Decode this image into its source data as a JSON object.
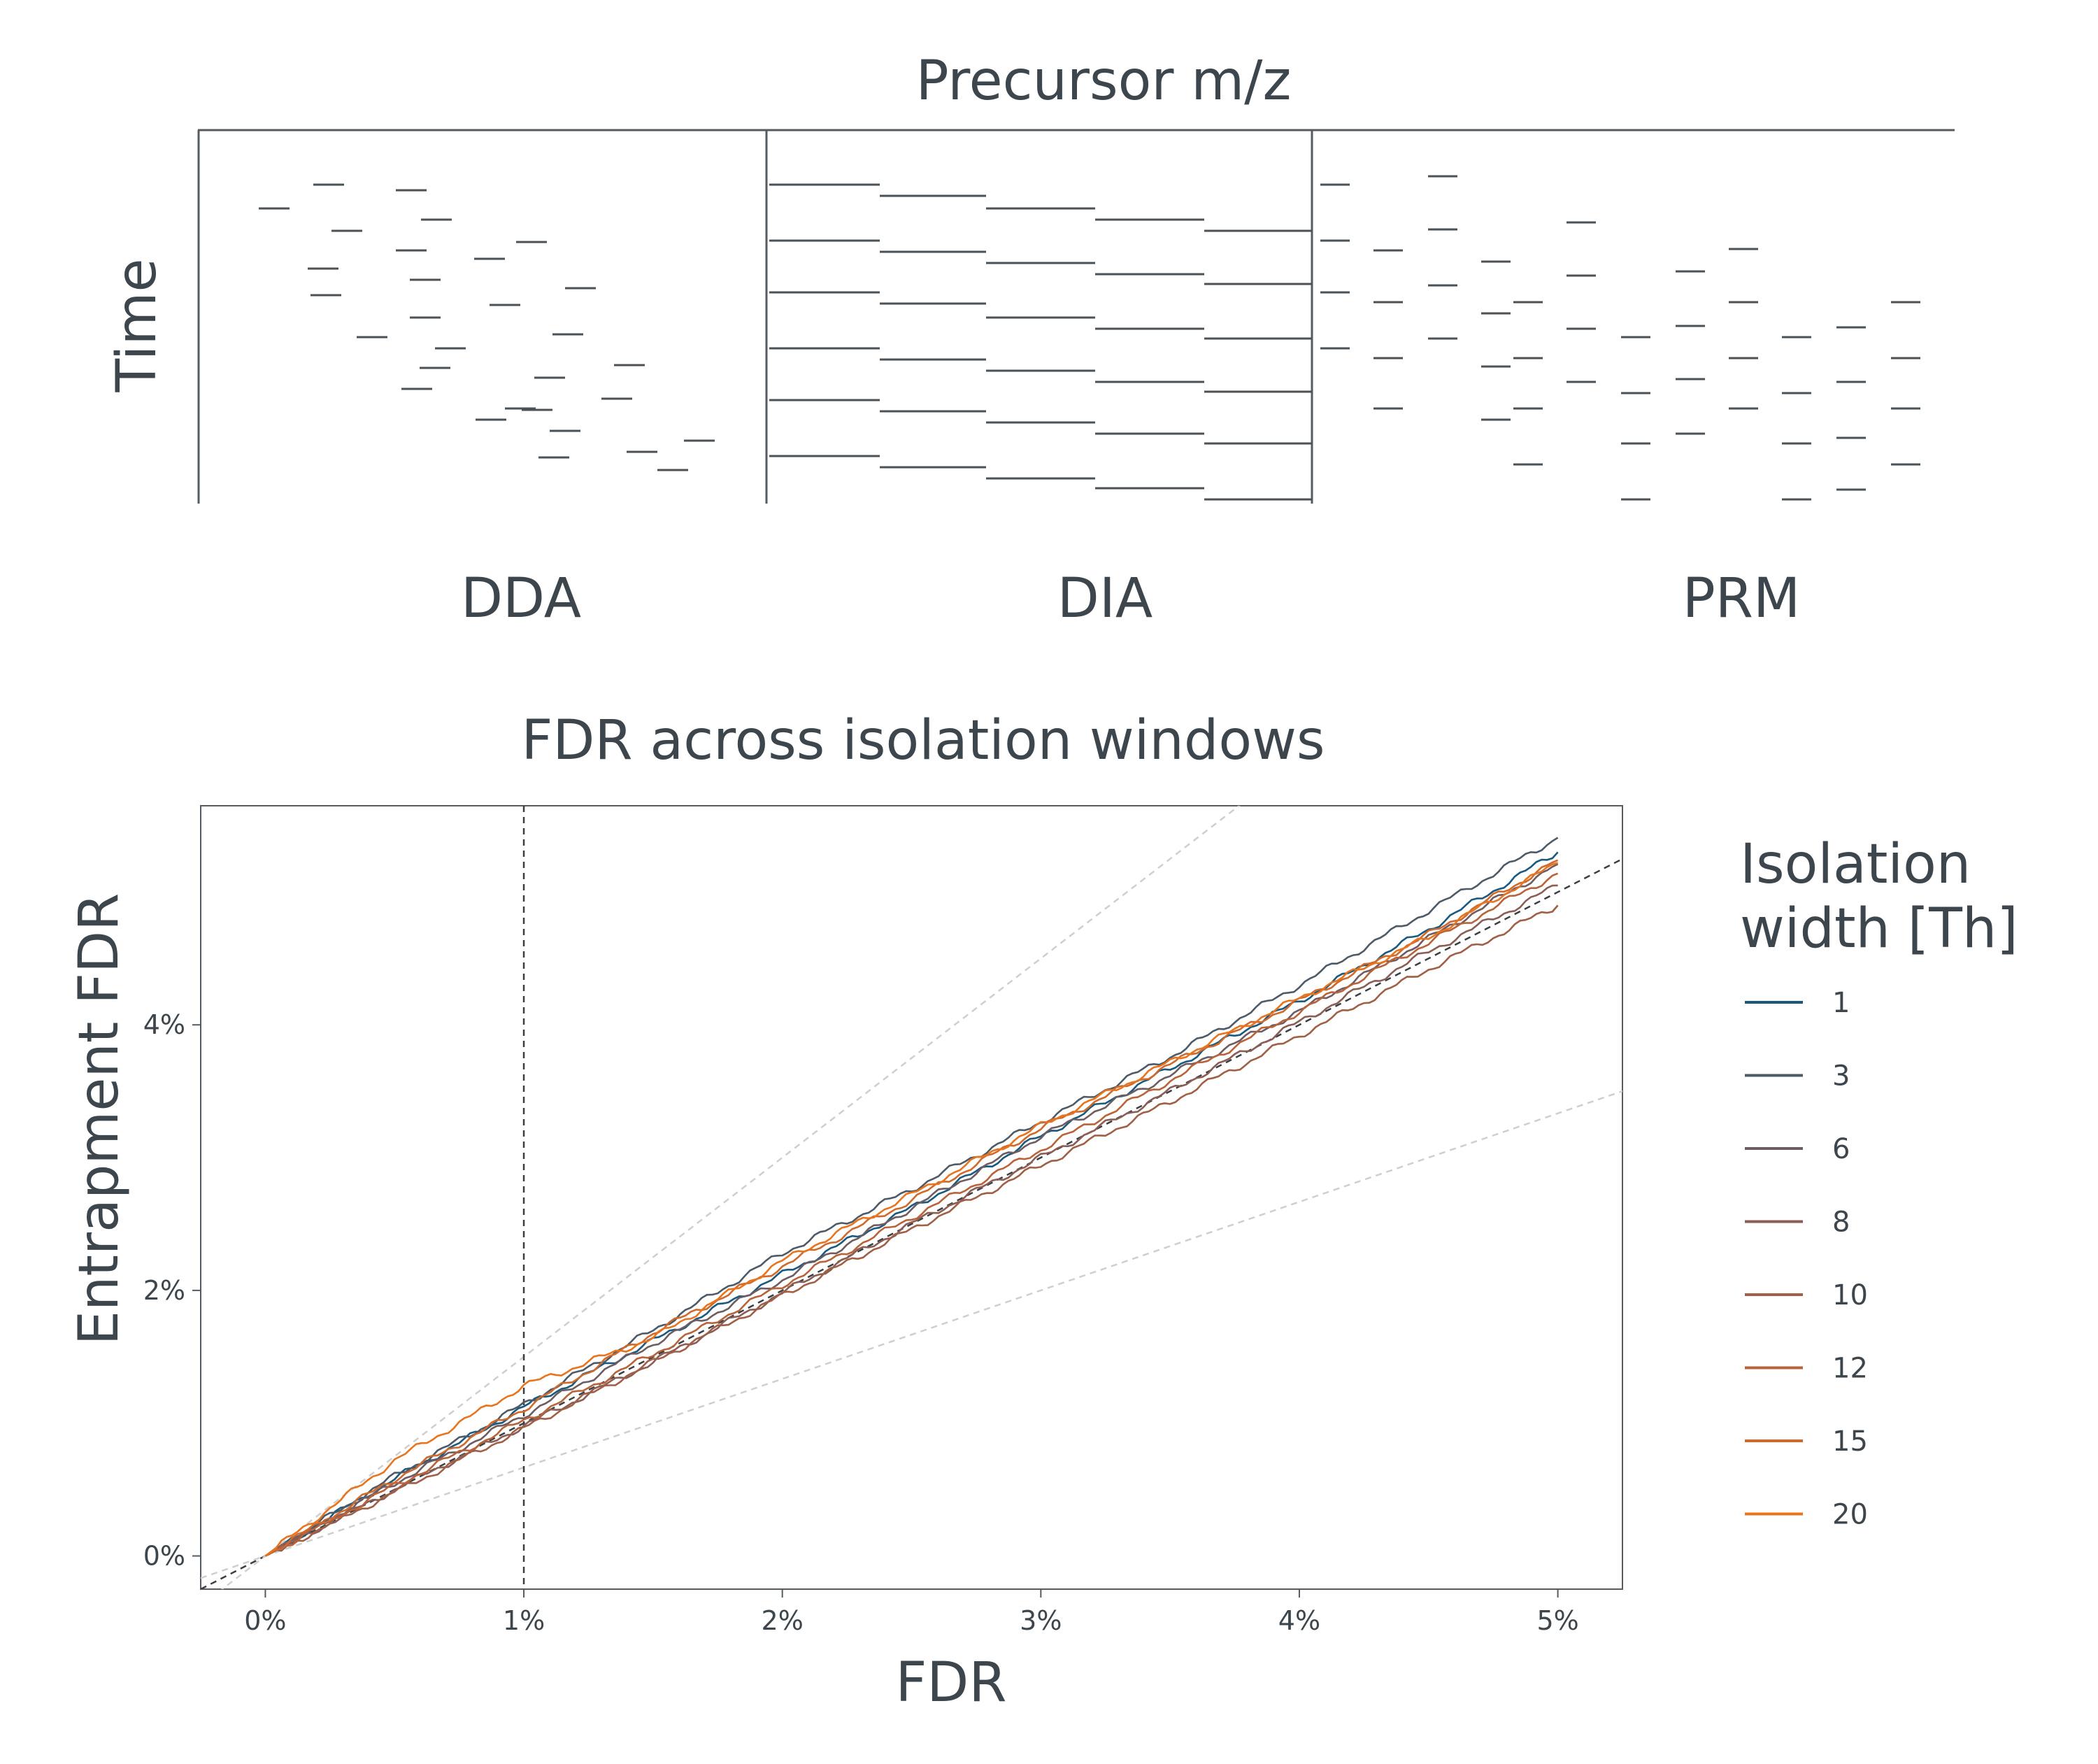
{
  "scheme": {
    "title": "Precursor m/z",
    "ylabel": "Time",
    "panels": [
      "DDA",
      "DIA",
      "PRM"
    ]
  },
  "chart_data": {
    "type": "line",
    "title": "FDR across isolation windows",
    "xlabel": "FDR",
    "ylabel": "Entrapment FDR",
    "xlim": [
      -0.0025,
      0.0525
    ],
    "ylim": [
      -0.0025,
      0.0565
    ],
    "x_ticks": [
      0,
      0.01,
      0.02,
      0.03,
      0.04,
      0.05
    ],
    "x_tick_labels": [
      "0%",
      "1%",
      "2%",
      "3%",
      "4%",
      "5%"
    ],
    "y_ticks": [
      0,
      0.02,
      0.04
    ],
    "y_tick_labels": [
      "0%",
      "2%",
      "4%"
    ],
    "vline_x": 0.01,
    "reference_lines": [
      {
        "slope": 1,
        "style": "dark-dashed"
      },
      {
        "slope": 1.5,
        "style": "light-dashed"
      },
      {
        "slope": 0.6667,
        "style": "light-dashed"
      }
    ],
    "legend_title": "Isolation width [Th]",
    "legend_position": "right",
    "series": [
      {
        "name": "1",
        "color": "#1b5a7e",
        "x": [
          0,
          0.005,
          0.01,
          0.015,
          0.02,
          0.025,
          0.03,
          0.035,
          0.04,
          0.045,
          0.05
        ],
        "y": [
          0,
          0.0058,
          0.0112,
          0.0162,
          0.0212,
          0.0262,
          0.0316,
          0.0367,
          0.0418,
          0.0472,
          0.053
        ]
      },
      {
        "name": "3",
        "color": "#4d5a67",
        "x": [
          0,
          0.005,
          0.01,
          0.015,
          0.02,
          0.025,
          0.03,
          0.035,
          0.04,
          0.045,
          0.05
        ],
        "y": [
          0,
          0.006,
          0.0114,
          0.017,
          0.0228,
          0.0276,
          0.0327,
          0.0376,
          0.043,
          0.0486,
          0.0541
        ]
      },
      {
        "name": "6",
        "color": "#6e5c63",
        "x": [
          0,
          0.005,
          0.01,
          0.015,
          0.02,
          0.025,
          0.03,
          0.035,
          0.04,
          0.045,
          0.05
        ],
        "y": [
          0,
          0.0055,
          0.0106,
          0.016,
          0.0208,
          0.0262,
          0.0316,
          0.0362,
          0.041,
          0.0465,
          0.0521
        ]
      },
      {
        "name": "8",
        "color": "#8a5d55",
        "x": [
          0,
          0.005,
          0.01,
          0.015,
          0.02,
          0.025,
          0.03,
          0.035,
          0.04,
          0.045,
          0.05
        ],
        "y": [
          0,
          0.005,
          0.0098,
          0.0146,
          0.0198,
          0.025,
          0.03,
          0.035,
          0.0402,
          0.0455,
          0.0505
        ]
      },
      {
        "name": "10",
        "color": "#a05f47",
        "x": [
          0,
          0.005,
          0.01,
          0.015,
          0.02,
          0.025,
          0.03,
          0.035,
          0.04,
          0.045,
          0.05
        ],
        "y": [
          0,
          0.0048,
          0.0096,
          0.0146,
          0.0196,
          0.0246,
          0.0294,
          0.0342,
          0.0392,
          0.0442,
          0.049
        ]
      },
      {
        "name": "12",
        "color": "#b8633a",
        "x": [
          0,
          0.005,
          0.01,
          0.015,
          0.02,
          0.025,
          0.03,
          0.035,
          0.04,
          0.045,
          0.05
        ],
        "y": [
          0,
          0.0053,
          0.0102,
          0.0152,
          0.0204,
          0.0255,
          0.0306,
          0.0358,
          0.041,
          0.0462,
          0.0514
        ]
      },
      {
        "name": "15",
        "color": "#d06a2c",
        "x": [
          0,
          0.005,
          0.01,
          0.015,
          0.02,
          0.025,
          0.03,
          0.035,
          0.04,
          0.045,
          0.05
        ],
        "y": [
          0,
          0.0058,
          0.0111,
          0.0168,
          0.0218,
          0.0268,
          0.0322,
          0.037,
          0.0418,
          0.0468,
          0.0524
        ]
      },
      {
        "name": "20",
        "color": "#e8741e",
        "x": [
          0,
          0.005,
          0.01,
          0.015,
          0.02,
          0.025,
          0.03,
          0.035,
          0.04,
          0.045,
          0.05
        ],
        "y": [
          0,
          0.0072,
          0.0128,
          0.0164,
          0.0222,
          0.0272,
          0.0324,
          0.0372,
          0.042,
          0.0466,
          0.0522
        ]
      }
    ]
  }
}
